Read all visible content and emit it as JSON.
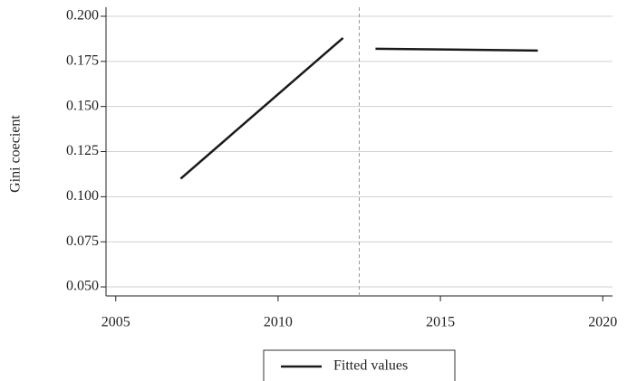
{
  "chart_data": {
    "type": "line",
    "y_label": "Gini coecient",
    "x": [
      2007,
      2012,
      2012.5,
      2013,
      2018
    ],
    "series": [
      {
        "name": "Fitted values",
        "color": "#1a1a1a",
        "values": [
          0.11,
          0.188,
          null,
          0.182,
          0.181
        ]
      }
    ],
    "xlim": [
      2004.7,
      2020.3
    ],
    "xticks": [
      2005,
      2010,
      2015,
      2020
    ],
    "ylim": [
      0.045,
      0.205
    ],
    "yticks": [
      {
        "value": 0.05,
        "label": "0.050"
      },
      {
        "value": 0.075,
        "label": "0.075"
      },
      {
        "value": 0.1,
        "label": "0.100"
      },
      {
        "value": 0.125,
        "label": "0.125"
      },
      {
        "value": 0.15,
        "label": "0.150"
      },
      {
        "value": 0.175,
        "label": "0.175"
      },
      {
        "value": 0.2,
        "label": "0.200"
      }
    ],
    "grid": true,
    "vline": 2012.5,
    "vline_color": "#999999",
    "legend": "bottom"
  }
}
